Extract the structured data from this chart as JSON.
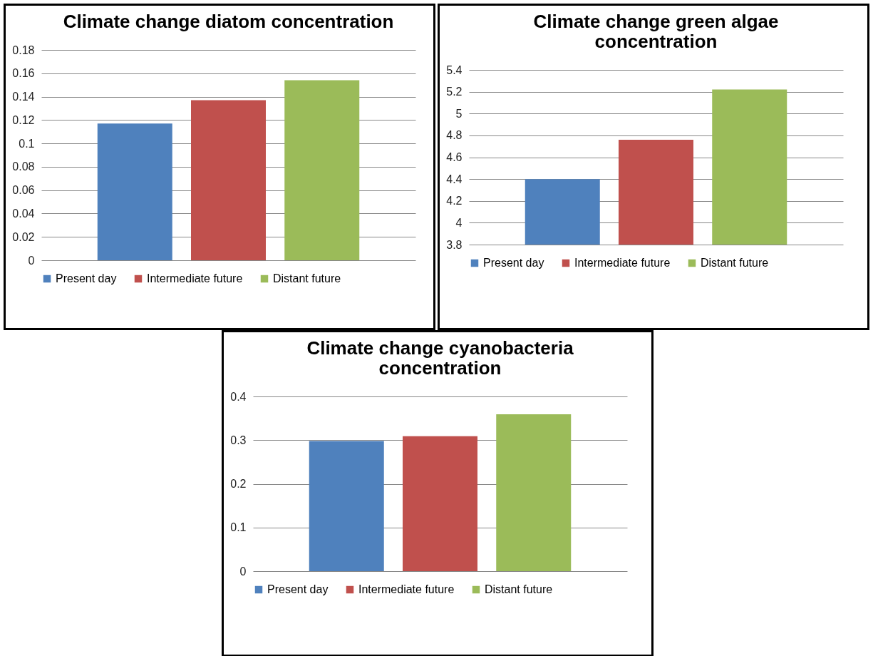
{
  "chart_data": [
    {
      "type": "bar",
      "title": "Climate change diatom concentration",
      "categories": [
        null
      ],
      "series": [
        {
          "name": "Present day",
          "color": "#4f81bd",
          "values": [
            0.117
          ]
        },
        {
          "name": "Intermediate future",
          "color": "#c0504d",
          "values": [
            0.137
          ]
        },
        {
          "name": "Distant future",
          "color": "#9bbb59",
          "values": [
            0.154
          ]
        }
      ],
      "ylim": [
        0,
        0.18
      ],
      "yticks": [
        0,
        0.02,
        0.04,
        0.06,
        0.08,
        0.1,
        0.12,
        0.14,
        0.16,
        0.18
      ],
      "grid": "y",
      "legend": "bottom"
    },
    {
      "type": "bar",
      "title": "Climate change green algae concentration",
      "categories": [
        null
      ],
      "series": [
        {
          "name": "Present day",
          "color": "#4f81bd",
          "values": [
            4.4
          ]
        },
        {
          "name": "Intermediate future",
          "color": "#c0504d",
          "values": [
            4.76
          ]
        },
        {
          "name": "Distant future",
          "color": "#9bbb59",
          "values": [
            5.22
          ]
        }
      ],
      "ylim": [
        3.8,
        5.4
      ],
      "yticks": [
        3.8,
        4,
        4.2,
        4.4,
        4.6,
        4.8,
        5,
        5.2,
        5.4
      ],
      "grid": "y",
      "legend": "bottom"
    },
    {
      "type": "bar",
      "title": "Climate change cyanobacteria concentration",
      "categories": [
        null
      ],
      "series": [
        {
          "name": "Present day",
          "color": "#4f81bd",
          "values": [
            0.298
          ]
        },
        {
          "name": "Intermediate future",
          "color": "#c0504d",
          "values": [
            0.309
          ]
        },
        {
          "name": "Distant future",
          "color": "#9bbb59",
          "values": [
            0.359
          ]
        }
      ],
      "ylim": [
        0,
        0.4
      ],
      "yticks": [
        0,
        0.1,
        0.2,
        0.3,
        0.4
      ],
      "grid": "y",
      "legend": "bottom"
    }
  ]
}
